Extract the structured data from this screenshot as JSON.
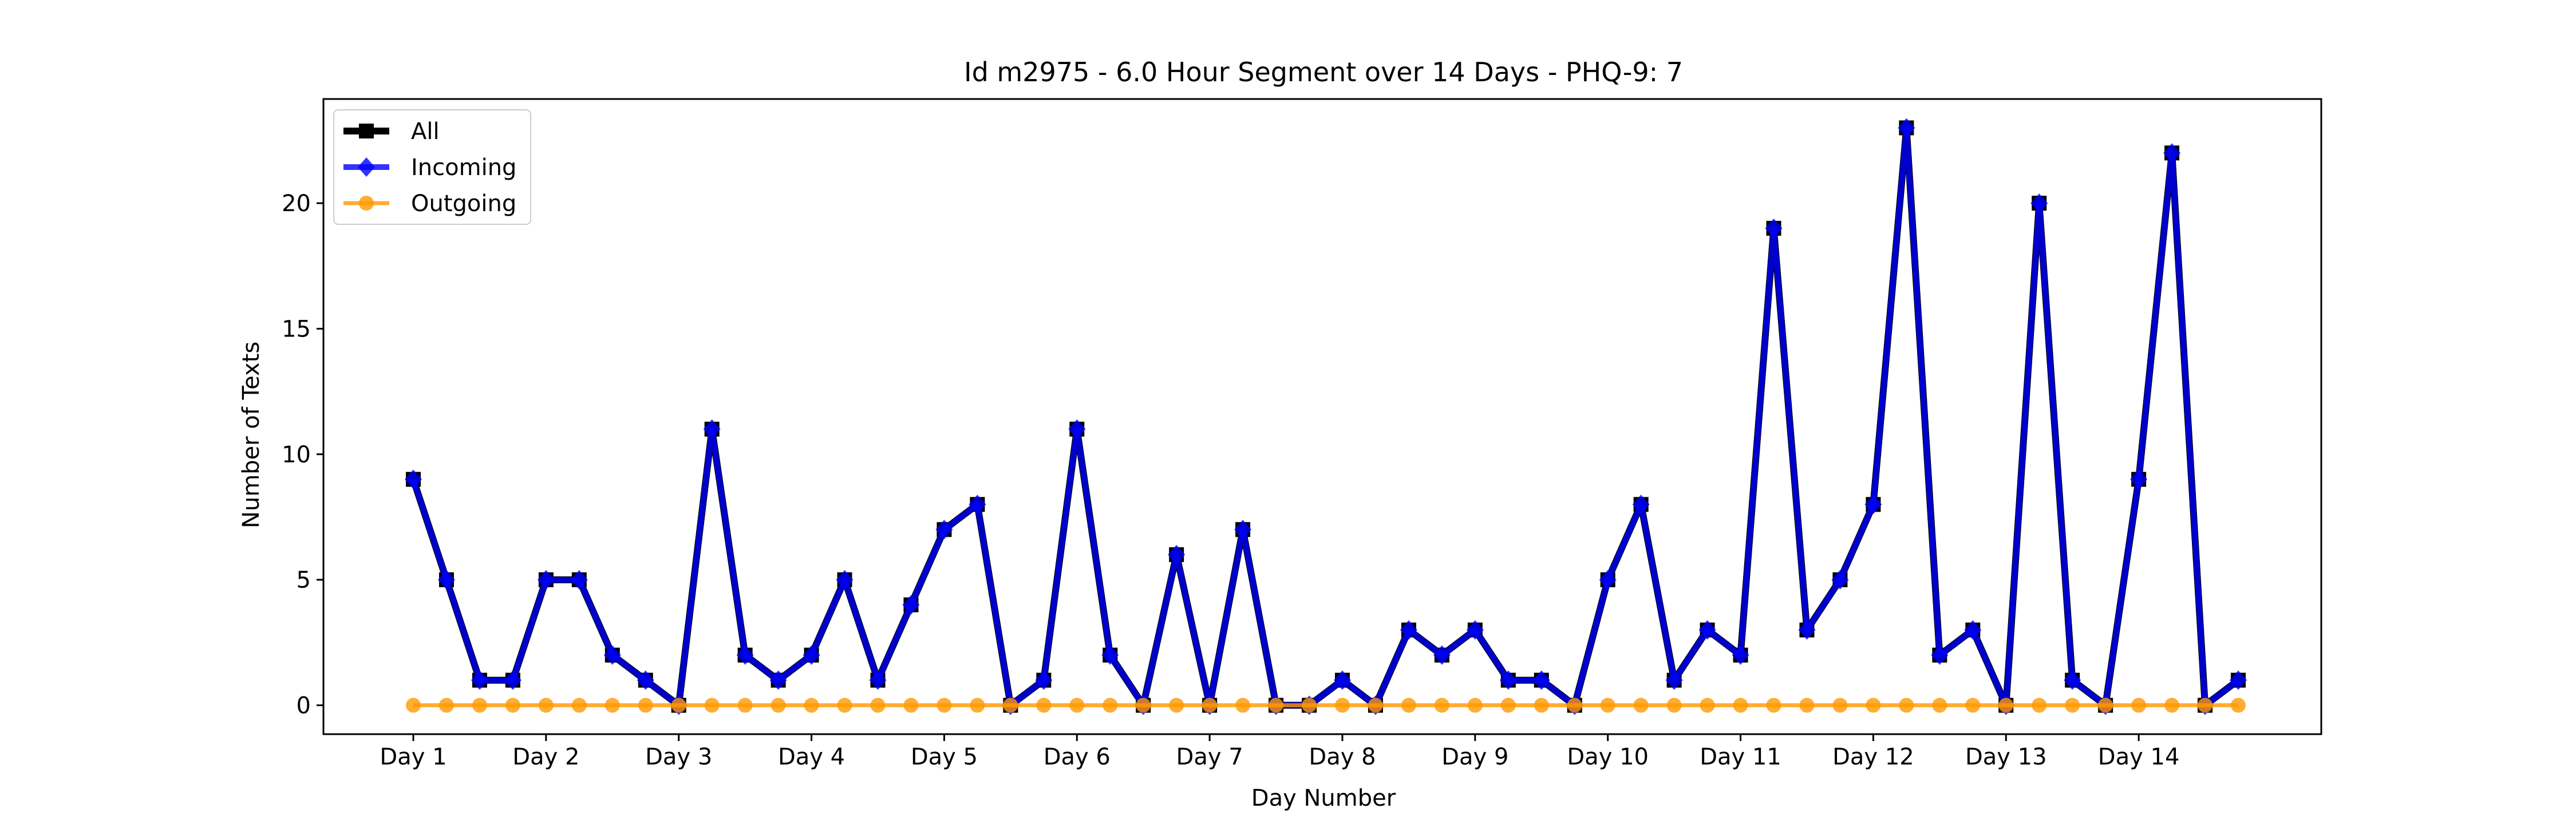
{
  "chart_data": {
    "type": "line",
    "title": "Id m2975 - 6.0 Hour Segment over 14 Days - PHQ-9: 7",
    "xlabel": "Day Number",
    "ylabel": "Number of Texts",
    "x_tick_labels": [
      "Day 1",
      "Day 2",
      "Day 3",
      "Day 4",
      "Day 5",
      "Day 6",
      "Day 7",
      "Day 8",
      "Day 9",
      "Day 10",
      "Day 11",
      "Day 12",
      "Day 13",
      "Day 14"
    ],
    "y_ticks": [
      0,
      5,
      10,
      15,
      20
    ],
    "ylim": [
      -1.15,
      24.15
    ],
    "segments_per_day": 4,
    "grid": false,
    "legend_position": "upper-left",
    "series": [
      {
        "name": "All",
        "color": "#000000",
        "marker": "square",
        "values": [
          9,
          5,
          1,
          1,
          5,
          5,
          2,
          1,
          0,
          11,
          2,
          1,
          2,
          5,
          1,
          4,
          7,
          8,
          0,
          1,
          11,
          2,
          0,
          6,
          0,
          7,
          0,
          0,
          1,
          0,
          3,
          2,
          3,
          1,
          1,
          0,
          5,
          8,
          1,
          3,
          2,
          19,
          3,
          5,
          8,
          23,
          2,
          3,
          0,
          20,
          1,
          0,
          9,
          22,
          0,
          1
        ]
      },
      {
        "name": "Incoming",
        "color": "#0000ff",
        "marker": "diamond",
        "values": [
          9,
          5,
          1,
          1,
          5,
          5,
          2,
          1,
          0,
          11,
          2,
          1,
          2,
          5,
          1,
          4,
          7,
          8,
          0,
          1,
          11,
          2,
          0,
          6,
          0,
          7,
          0,
          0,
          1,
          0,
          3,
          2,
          3,
          1,
          1,
          0,
          5,
          8,
          1,
          3,
          2,
          19,
          3,
          5,
          8,
          23,
          2,
          3,
          0,
          20,
          1,
          0,
          9,
          22,
          0,
          1
        ]
      },
      {
        "name": "Outgoing",
        "color": "#ff9900",
        "marker": "circle",
        "values": [
          0,
          0,
          0,
          0,
          0,
          0,
          0,
          0,
          0,
          0,
          0,
          0,
          0,
          0,
          0,
          0,
          0,
          0,
          0,
          0,
          0,
          0,
          0,
          0,
          0,
          0,
          0,
          0,
          0,
          0,
          0,
          0,
          0,
          0,
          0,
          0,
          0,
          0,
          0,
          0,
          0,
          0,
          0,
          0,
          0,
          0,
          0,
          0,
          0,
          0,
          0,
          0,
          0,
          0,
          0,
          0
        ]
      }
    ]
  }
}
